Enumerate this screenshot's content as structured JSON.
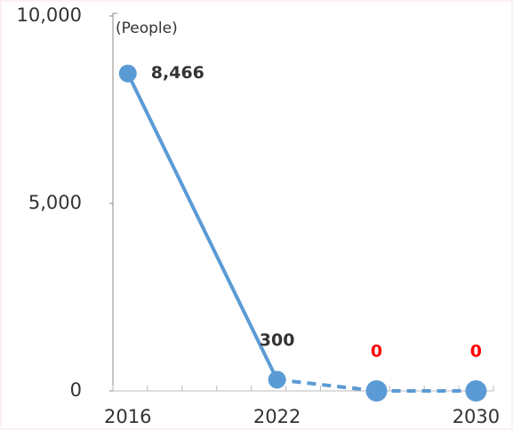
{
  "chart_data": {
    "type": "line",
    "y_axis_label": "(People)",
    "x": [
      2016,
      2022,
      2026,
      2030
    ],
    "series": [
      {
        "color": "#5b9bd5",
        "values": [
          8466,
          300,
          0,
          0
        ],
        "value_labels": [
          "8,466",
          "300",
          "0",
          "0"
        ],
        "label_colors": [
          "#333333",
          "#333333",
          "#ff0000",
          "#ff0000"
        ],
        "segment_styles": [
          "solid",
          "dashed",
          "dashed"
        ]
      }
    ],
    "xlim": [
      2015.4,
      2030.7
    ],
    "xticks": [
      2016,
      2022,
      2030
    ],
    "ylim": [
      0,
      10000
    ],
    "yticks": [
      {
        "value": 0,
        "label": "0"
      },
      {
        "value": 5000,
        "label": "5,000"
      },
      {
        "value": 10000,
        "label": "10,000"
      }
    ],
    "grid": false
  }
}
